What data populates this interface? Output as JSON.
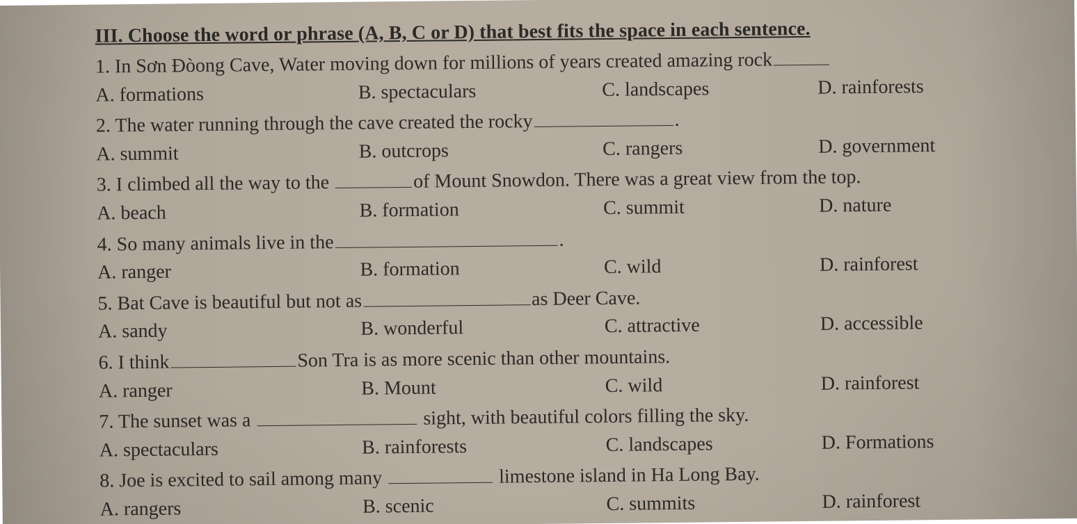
{
  "background_color": "#b6ada0",
  "text_color": "#2c2a27",
  "base_fontsize": 28,
  "section_title": "III. Choose the word or phrase (A, B, C or D) that best fits the space in each sentence.",
  "questions": [
    {
      "num": "1",
      "pre": "In Sơn Đòong Cave, Water moving down for millions of years created amazing rock",
      "post": "",
      "blank_width": 80,
      "options": {
        "A": "formations",
        "B": "spectaculars",
        "C": "landscapes",
        "D": "rainforests"
      }
    },
    {
      "num": "2",
      "pre": "The water running through the cave created the rocky",
      "post": ".",
      "blank_width": 200,
      "options": {
        "A": "summit",
        "B": "outcrops",
        "C": "rangers",
        "D": "government"
      }
    },
    {
      "num": "3",
      "pre": "I climbed all the way to the ",
      "post": "of Mount Snowdon. There was a great view from the top.",
      "blank_width": 110,
      "options": {
        "A": "beach",
        "B": "formation",
        "C": "summit",
        "D": "nature"
      }
    },
    {
      "num": "4",
      "pre": "So many animals live in the",
      "post": ".",
      "blank_width": 320,
      "options": {
        "A": "ranger",
        "B": "formation",
        "C": "wild",
        "D": "rainforest"
      }
    },
    {
      "num": "5",
      "pre": "Bat Cave is beautiful but not as",
      "post": "as Deer Cave.",
      "blank_width": 240,
      "options": {
        "A": "sandy",
        "B": "wonderful",
        "C": "attractive",
        "D": "accessible"
      }
    },
    {
      "num": "6",
      "pre": "I think",
      "post": "Son Tra is as more scenic than other mountains.",
      "blank_width": 180,
      "options": {
        "A": "ranger",
        "B": "Mount",
        "C": "wild",
        "D": "rainforest"
      }
    },
    {
      "num": "7",
      "pre": "The sunset was a ",
      "post": " sight, with beautiful colors filling the sky.",
      "blank_width": 230,
      "options": {
        "A": "spectaculars",
        "B": "rainforests",
        "C": "landscapes",
        "D": "Formations"
      }
    },
    {
      "num": "8",
      "pre": "Joe is excited to sail among many ",
      "post": " limestone island in Ha Long Bay.",
      "blank_width": 150,
      "options": {
        "A": "rangers",
        "B": "scenic",
        "C": "summits",
        "D": "rainforest"
      }
    }
  ]
}
